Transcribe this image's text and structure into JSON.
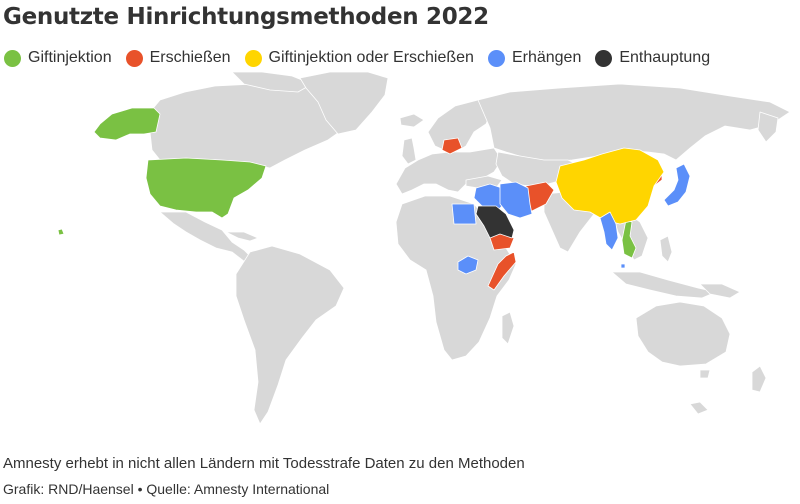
{
  "title": "Genutzte Hinrichtungsmethoden 2022",
  "legend": [
    {
      "label": "Giftinjektion",
      "color": "#7ac143"
    },
    {
      "label": "Erschießen",
      "color": "#e8522a"
    },
    {
      "label": "Giftinjektion oder Erschießen",
      "color": "#ffd500"
    },
    {
      "label": "Erhängen",
      "color": "#5b8ff9"
    },
    {
      "label": "Enthauptung",
      "color": "#333333"
    }
  ],
  "colors": {
    "land": "#d8d8d8",
    "border": "#ffffff"
  },
  "countries": [
    {
      "name": "USA",
      "method": "Giftinjektion"
    },
    {
      "name": "Vietnam",
      "method": "Giftinjektion"
    },
    {
      "name": "Belarus",
      "method": "Erschießen"
    },
    {
      "name": "Afghanistan",
      "method": "Erschießen"
    },
    {
      "name": "Nordkorea",
      "method": "Erschießen"
    },
    {
      "name": "Jemen",
      "method": "Erschießen"
    },
    {
      "name": "Somalia",
      "method": "Erschießen"
    },
    {
      "name": "China",
      "method": "Giftinjektion oder Erschießen"
    },
    {
      "name": "Ägypten",
      "method": "Erhängen"
    },
    {
      "name": "Iran",
      "method": "Erhängen"
    },
    {
      "name": "Irak",
      "method": "Erhängen"
    },
    {
      "name": "Syrien",
      "method": "Erhängen"
    },
    {
      "name": "Südsudan",
      "method": "Erhängen"
    },
    {
      "name": "Myanmar",
      "method": "Erhängen"
    },
    {
      "name": "Singapur",
      "method": "Erhängen"
    },
    {
      "name": "Japan",
      "method": "Erhängen"
    },
    {
      "name": "Saudi-Arabien",
      "method": "Enthauptung"
    }
  ],
  "note": "Amnesty erhebt in nicht allen Ländern mit Todesstrafe Daten zu den Methoden",
  "credit": "Grafik: RND/Haensel • Quelle: Amnesty International"
}
